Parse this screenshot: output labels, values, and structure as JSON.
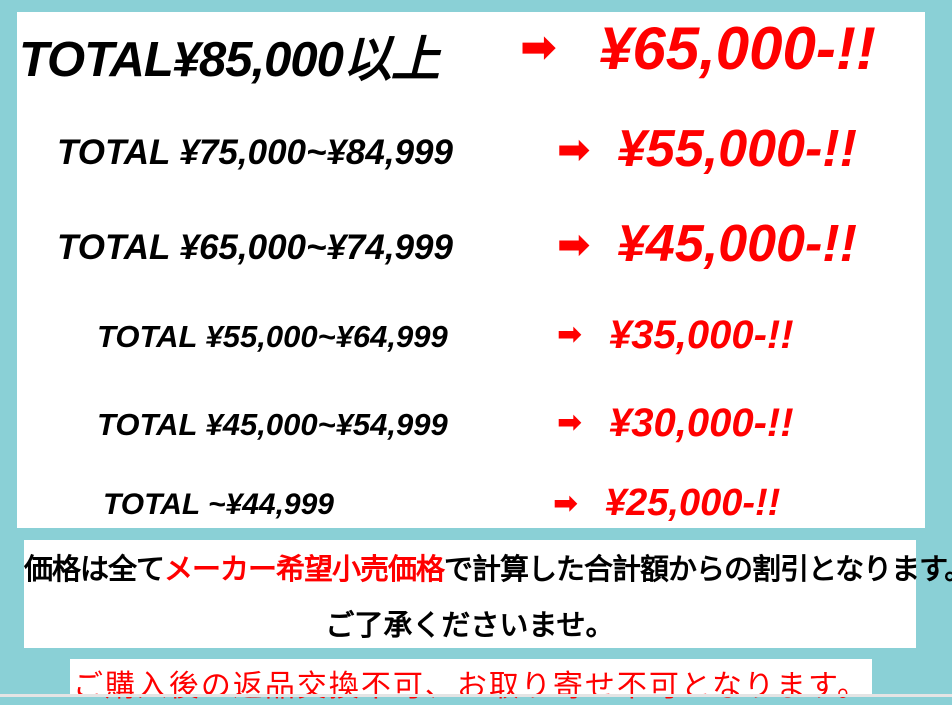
{
  "colors": {
    "background": "#8ad0d6",
    "accent": "#ff0000",
    "text": "#000000"
  },
  "arrow_icon": "right-arrow",
  "tiers": [
    {
      "range": "TOTAL¥85,000以上",
      "price": "¥65,000-!!"
    },
    {
      "range": "TOTAL ¥75,000~¥84,999",
      "price": "¥55,000-!!"
    },
    {
      "range": "TOTAL ¥65,000~¥74,999",
      "price": "¥45,000-!!"
    },
    {
      "range": "TOTAL ¥55,000~¥64,999",
      "price": "¥35,000-!!"
    },
    {
      "range": "TOTAL ¥45,000~¥54,999",
      "price": "¥30,000-!!"
    },
    {
      "range": "TOTAL ~¥44,999",
      "price": "¥25,000-!!"
    }
  ],
  "note": {
    "line1_prefix": "価格は全て",
    "line1_highlight": "メーカー希望小売価格",
    "line1_suffix": "で計算した合計額からの割引となります。",
    "line2": "ご了承くださいませ。"
  },
  "warning": "ご購入後の返品交換不可、お取り寄せ不可となります。"
}
